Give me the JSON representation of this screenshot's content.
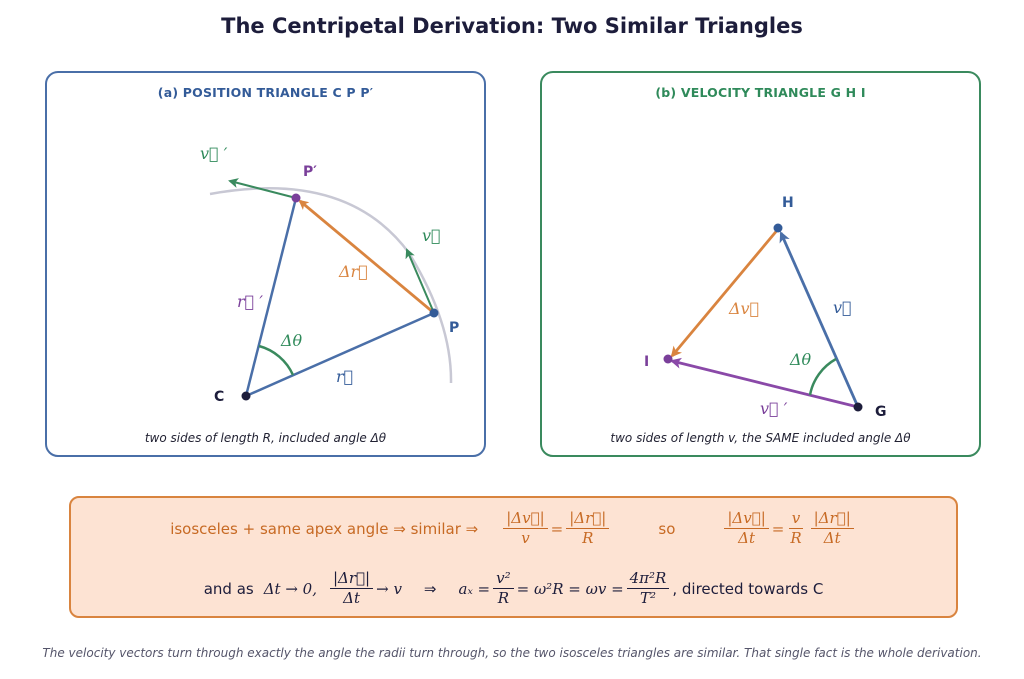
{
  "title": "The Centripetal Derivation: Two Similar Triangles",
  "panel_a": {
    "title": "(a)  POSITION TRIANGLE  C P P′",
    "caption": "two sides of length R, included angle Δθ",
    "labels": {
      "c": "C",
      "p": "P",
      "p_prime": "P′",
      "r": "r⃗",
      "r_prime": "r⃗ ′",
      "delta_r": "Δr⃗",
      "delta_theta": "Δθ",
      "v": "v⃗",
      "v_prime": "v⃗ ′"
    }
  },
  "panel_b": {
    "title": "(b)  VELOCITY TRIANGLE  G H I",
    "caption": "two sides of length v, the SAME included angle Δθ",
    "labels": {
      "g": "G",
      "h": "H",
      "i": "I",
      "v": "v⃗",
      "v_prime": "v⃗ ′",
      "delta_v": "Δv⃗",
      "delta_theta": "Δθ"
    }
  },
  "summary": {
    "line1_text": "isosceles + same apex angle ⇒ similar ⇒",
    "frac_dv_num": "|Δv⃗|",
    "frac_dv_den": "v",
    "eq": "=",
    "frac_dr_num": "|Δr⃗|",
    "frac_dr_den": "R",
    "so": "so",
    "frac_dvdt_num": "|Δv⃗|",
    "frac_dvdt_den": "Δt",
    "frac_vr_num": "v",
    "frac_vr_den": "R",
    "frac_drdt_num": "|Δr⃗|",
    "frac_drdt_den": "Δt",
    "line2_text": "and as",
    "limit": "Δt → 0,",
    "frac_lim_num": "|Δr⃗|",
    "frac_lim_den": "Δt",
    "arrow_v": "→ v",
    "implies": "⇒",
    "ac": "aₓ =",
    "frac_ac_num": "v²",
    "frac_ac_den": "R",
    "eq_chain": "= ω²R = ωv =",
    "frac_t_num": "4π²R",
    "frac_t_den": "T²",
    "directed": ",   directed towards C"
  },
  "footer": "The velocity vectors turn through exactly the angle the radii turn through, so the two isosceles triangles are similar. That single fact is the whole derivation.",
  "colors": {
    "blue": "#4a6fa8",
    "orange": "#d9843f",
    "green": "#3a8a5e",
    "purple": "#8a49a8",
    "arc": "#c8c8d4"
  }
}
